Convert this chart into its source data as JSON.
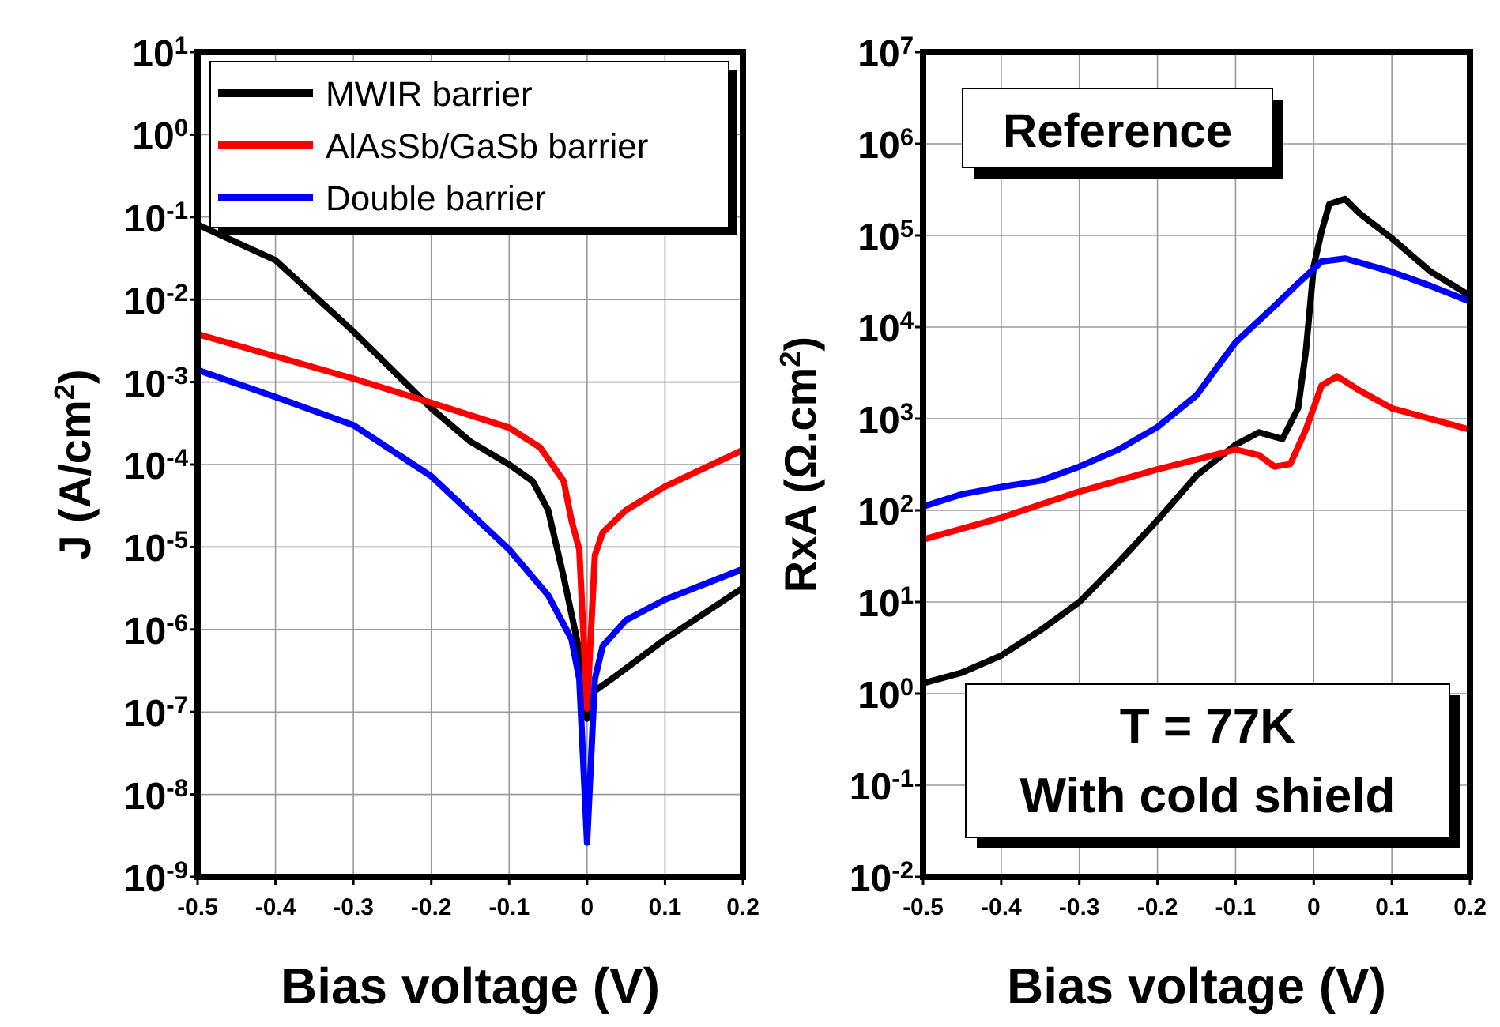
{
  "chart_data": [
    {
      "type": "line",
      "xlabel": "Bias voltage (V)",
      "ylabel": "J (A/cm$^{2}$)",
      "log": "y",
      "grid": true,
      "legend": "top",
      "line_style": "solid",
      "marker": "none",
      "xlim": [
        -0.5,
        0.2
      ],
      "xticks": [
        -0.5,
        -0.4,
        -0.3,
        -0.2,
        -0.1,
        0.0,
        0.1,
        0.2
      ],
      "ylim": [
        1e-09,
        10
      ],
      "yticks": [
        {
          "value": 1e-09,
          "label": "10$^{-9}$"
        },
        {
          "value": 1e-08,
          "label": "10$^{-8}$"
        },
        {
          "value": 1e-07,
          "label": "10$^{-7}$"
        },
        {
          "value": 1e-06,
          "label": "10$^{-6}$"
        },
        {
          "value": 1e-05,
          "label": "10$^{-5}$"
        },
        {
          "value": 0.0001,
          "label": "10$^{-4}$"
        },
        {
          "value": 0.001,
          "label": "10$^{-3}$"
        },
        {
          "value": 0.01,
          "label": "10$^{-2}$"
        },
        {
          "value": 0.1,
          "label": "10$^{-1}$"
        },
        {
          "value": 1,
          "label": "10$^{0}$"
        },
        {
          "value": 10,
          "label": "10$^{1}$"
        }
      ],
      "series": [
        {
          "name": "MWIR barrier",
          "color": "#000000",
          "x": [
            -0.5,
            -0.4,
            -0.3,
            -0.2,
            -0.15,
            -0.1,
            -0.07,
            -0.05,
            -0.03,
            -0.01,
            0,
            0.01,
            0.036,
            0.1,
            0.2
          ],
          "values": [
            0.081,
            0.03,
            0.0041,
            0.00048,
            0.00019,
            0.0001,
            6.3e-05,
            2.8e-05,
            4.3e-06,
            5.5e-07,
            8.3e-08,
            1.8e-07,
            2.7e-07,
            7.6e-07,
            3.2e-06
          ]
        },
        {
          "name": "AlAsSb/GaSb barrier",
          "color": "#ff0000",
          "x": [
            -0.5,
            -0.3,
            -0.2,
            -0.1,
            -0.06,
            -0.03,
            -0.02,
            -0.01,
            0,
            0.01,
            0.02,
            0.05,
            0.1,
            0.2
          ],
          "values": [
            0.0038,
            0.0011,
            0.00056,
            0.00028,
            0.00016,
            6.3e-05,
            2.1e-05,
            9.3e-06,
            1.1e-07,
            7.9e-06,
            1.5e-05,
            2.8e-05,
            5.4e-05,
            0.00015
          ]
        },
        {
          "name": "Double barrier",
          "color": "#0000ff",
          "x": [
            -0.5,
            -0.4,
            -0.3,
            -0.2,
            -0.1,
            -0.05,
            -0.02,
            -0.01,
            0,
            0.01,
            0.02,
            0.05,
            0.1,
            0.2
          ],
          "values": [
            0.0014,
            0.00066,
            0.0003,
            7.2e-05,
            9.3e-06,
            2.6e-06,
            7.6e-07,
            2.5e-07,
            2.6e-09,
            2.5e-07,
            6.3e-07,
            1.3e-06,
            2.3e-06,
            5.4e-06
          ]
        }
      ]
    },
    {
      "type": "line",
      "xlabel": "Bias voltage (V)",
      "ylabel": "RxA (Ω.cm$^{2}$)",
      "log": "y",
      "grid": true,
      "line_style": "solid",
      "marker": "none",
      "annotations": [
        "Reference",
        "T = 77K",
        "With cold shield"
      ],
      "xlim": [
        -0.5,
        0.2
      ],
      "xticks": [
        -0.5,
        -0.4,
        -0.3,
        -0.2,
        -0.1,
        0.0,
        0.1,
        0.2
      ],
      "ylim": [
        0.01,
        10000000.0
      ],
      "yticks": [
        {
          "value": 0.01,
          "label": "10$^{-2}$"
        },
        {
          "value": 0.1,
          "label": "10$^{-1}$"
        },
        {
          "value": 1,
          "label": "10$^{0}$"
        },
        {
          "value": 10,
          "label": "10$^{1}$"
        },
        {
          "value": 100,
          "label": "10$^{2}$"
        },
        {
          "value": 1000,
          "label": "10$^{3}$"
        },
        {
          "value": 10000.0,
          "label": "10$^{4}$"
        },
        {
          "value": 100000.0,
          "label": "10$^{5}$"
        },
        {
          "value": 1000000.0,
          "label": "10$^{6}$"
        },
        {
          "value": 10000000.0,
          "label": "10$^{7}$"
        }
      ],
      "series": [
        {
          "color": "#000000",
          "x": [
            -0.5,
            -0.45,
            -0.4,
            -0.35,
            -0.3,
            -0.25,
            -0.2,
            -0.15,
            -0.1,
            -0.07,
            -0.04,
            -0.02,
            -0.01,
            0,
            0.01,
            0.02,
            0.04,
            0.06,
            0.1,
            0.15,
            0.2
          ],
          "values": [
            1.3,
            1.7,
            2.6,
            4.9,
            10,
            27,
            78,
            240,
            520,
            710,
            600,
            1300,
            5500,
            46000,
            110000,
            220000,
            250000,
            170000,
            93000,
            40000,
            22000
          ]
        },
        {
          "color": "#ff0000",
          "x": [
            -0.5,
            -0.4,
            -0.3,
            -0.2,
            -0.1,
            -0.07,
            -0.05,
            -0.03,
            -0.01,
            0.01,
            0.03,
            0.06,
            0.1,
            0.2
          ],
          "values": [
            48,
            83,
            160,
            280,
            460,
            400,
            300,
            320,
            760,
            2300,
            2900,
            2000,
            1300,
            760
          ]
        },
        {
          "color": "#0000ff",
          "x": [
            -0.5,
            -0.45,
            -0.4,
            -0.35,
            -0.3,
            -0.25,
            -0.2,
            -0.15,
            -0.1,
            -0.05,
            -0.02,
            0,
            0.01,
            0.04,
            0.1,
            0.15,
            0.2
          ],
          "values": [
            110,
            150,
            180,
            210,
            300,
            460,
            810,
            1800,
            6800,
            17000,
            30000,
            43000,
            52000,
            56000,
            40000,
            28000,
            19000
          ]
        }
      ]
    }
  ]
}
